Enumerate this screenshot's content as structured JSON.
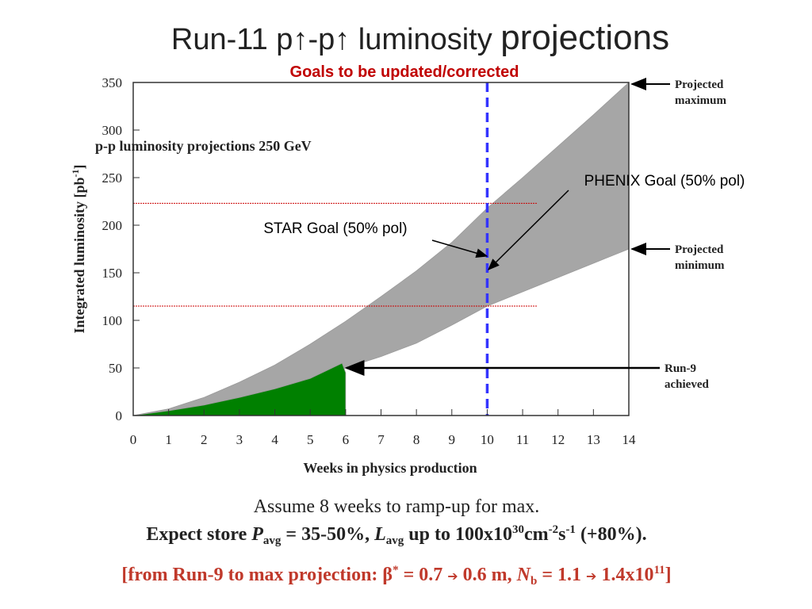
{
  "slide": {
    "title": [
      "Run-11 p",
      "↑",
      "-p",
      "↑",
      " luminosity ",
      "projections"
    ],
    "subtitle": "Goals to be updated/corrected",
    "notes": {
      "line1": "Assume 8 weeks to ramp-up for max.",
      "line2": [
        "Expect store ",
        "P",
        "avg",
        " = 35-50%, ",
        "L",
        "avg",
        " up to 100x10",
        "30",
        "cm",
        "-2",
        "s",
        "-1",
        " (+80%)."
      ],
      "line3": [
        "[from Run-9 to max projection: β",
        "*",
        " = 0.7 ",
        "➔",
        " 0.6 m, ",
        "N",
        "b",
        " = 1.1 ",
        "➔",
        " 1.4x10",
        "11",
        "]"
      ]
    }
  },
  "chart_data": {
    "type": "area",
    "inner_title": "p-p luminosity projections 250 GeV",
    "xlabel": "Weeks in physics production",
    "ylabel": [
      "Integrated luminosity [pb",
      "-1",
      "]"
    ],
    "x": [
      0,
      1,
      2,
      3,
      4,
      5,
      6,
      7,
      8,
      9,
      10,
      11,
      12,
      13,
      14
    ],
    "series": [
      {
        "color": "#a6a6a6",
        "values": [
          0,
          7,
          19,
          35,
          53,
          75,
          99,
          125,
          152,
          182,
          218,
          250,
          283,
          316,
          350
        ]
      },
      {
        "color": "#ffffff",
        "values": [
          0,
          4,
          10,
          18,
          27,
          38,
          50,
          62,
          76,
          95,
          115,
          130,
          145,
          160,
          175
        ]
      },
      {
        "color": "#008000",
        "x": [
          0,
          1,
          2,
          3,
          4,
          5,
          5.9,
          6
        ],
        "values": [
          0,
          5,
          11,
          19,
          28,
          39,
          55,
          45
        ]
      }
    ],
    "xlim": [
      0,
      14
    ],
    "xticks": [
      0,
      1,
      2,
      3,
      4,
      5,
      6,
      7,
      8,
      9,
      10,
      11,
      12,
      13,
      14
    ],
    "ylim": [
      0,
      350
    ],
    "yticks": [
      0,
      50,
      100,
      150,
      200,
      250,
      300,
      350
    ],
    "vlines": [
      10
    ],
    "vline_color": "#3333ff",
    "hlines": [
      223,
      115
    ],
    "hline_color": "#cc0000",
    "hline_end": 11.4,
    "annotations": {
      "max": [
        "Projected",
        "maximum"
      ],
      "min": [
        "Projected",
        "minimum"
      ],
      "run9": [
        "Run-9",
        "achieved"
      ],
      "phenix": "PHENIX Goal (50% pol)",
      "star": "STAR Goal (50% pol)"
    }
  }
}
